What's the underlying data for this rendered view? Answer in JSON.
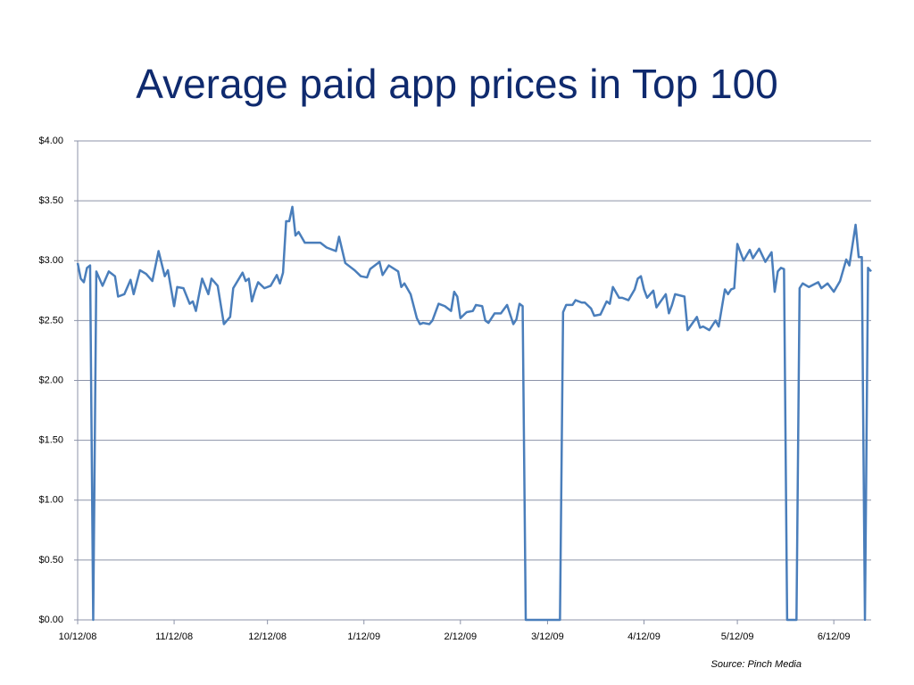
{
  "chart_data": {
    "type": "line",
    "title": "Average paid app prices in Top 100",
    "source": "Source: Pinch Media",
    "color": "#4a7ebb",
    "grid": true,
    "ylim": [
      0,
      4
    ],
    "yticks": [
      {
        "value": 0,
        "label": "$0.00"
      },
      {
        "value": 0.5,
        "label": "$0.50"
      },
      {
        "value": 1,
        "label": "$1.00"
      },
      {
        "value": 1.5,
        "label": "$1.50"
      },
      {
        "value": 2,
        "label": "$2.00"
      },
      {
        "value": 2.5,
        "label": "$2.50"
      },
      {
        "value": 3,
        "label": "$3.00"
      },
      {
        "value": 3.5,
        "label": "$3.50"
      },
      {
        "value": 4,
        "label": "$4.00"
      }
    ],
    "xlim": [
      "2008-10-12",
      "2009-06-24"
    ],
    "xticks": [
      {
        "value": "2008-10-12",
        "label": "10/12/08"
      },
      {
        "value": "2008-11-12",
        "label": "11/12/08"
      },
      {
        "value": "2008-12-12",
        "label": "12/12/08"
      },
      {
        "value": "2009-01-12",
        "label": "1/12/09"
      },
      {
        "value": "2009-02-12",
        "label": "2/12/09"
      },
      {
        "value": "2009-03-12",
        "label": "3/12/09"
      },
      {
        "value": "2009-04-12",
        "label": "4/12/09"
      },
      {
        "value": "2009-05-12",
        "label": "5/12/09"
      },
      {
        "value": "2009-06-12",
        "label": "6/12/09"
      }
    ],
    "x": [
      "2008-10-12",
      "2008-10-13",
      "2008-10-14",
      "2008-10-15",
      "2008-10-16",
      "2008-10-17",
      "2008-10-18",
      "2008-10-20",
      "2008-10-22",
      "2008-10-24",
      "2008-10-25",
      "2008-10-27",
      "2008-10-29",
      "2008-10-30",
      "2008-11-01",
      "2008-11-03",
      "2008-11-05",
      "2008-11-07",
      "2008-11-09",
      "2008-11-10",
      "2008-11-12",
      "2008-11-13",
      "2008-11-15",
      "2008-11-17",
      "2008-11-18",
      "2008-11-19",
      "2008-11-21",
      "2008-11-23",
      "2008-11-24",
      "2008-11-26",
      "2008-11-28",
      "2008-11-30",
      "2008-12-01",
      "2008-12-04",
      "2008-12-05",
      "2008-12-06",
      "2008-12-07",
      "2008-12-08",
      "2008-12-09",
      "2008-12-11",
      "2008-12-13",
      "2008-12-15",
      "2008-12-16",
      "2008-12-17",
      "2008-12-18",
      "2008-12-19",
      "2008-12-20",
      "2008-12-21",
      "2008-12-22",
      "2008-12-24",
      "2008-12-26",
      "2008-12-29",
      "2008-12-31",
      "2009-01-03",
      "2009-01-04",
      "2009-01-06",
      "2009-01-08",
      "2009-01-09",
      "2009-01-11",
      "2009-01-13",
      "2009-01-14",
      "2009-01-17",
      "2009-01-18",
      "2009-01-20",
      "2009-01-23",
      "2009-01-24",
      "2009-01-25",
      "2009-01-27",
      "2009-01-29",
      "2009-01-30",
      "2009-01-31",
      "2009-02-02",
      "2009-02-03",
      "2009-02-05",
      "2009-02-07",
      "2009-02-09",
      "2009-02-10",
      "2009-02-11",
      "2009-02-12",
      "2009-02-14",
      "2009-02-16",
      "2009-02-17",
      "2009-02-19",
      "2009-02-20",
      "2009-02-21",
      "2009-02-23",
      "2009-02-25",
      "2009-02-27",
      "2009-03-01",
      "2009-03-02",
      "2009-03-03",
      "2009-03-04",
      "2009-03-05",
      "2009-03-16",
      "2009-03-17",
      "2009-03-18",
      "2009-03-20",
      "2009-03-21",
      "2009-03-23",
      "2009-03-24",
      "2009-03-26",
      "2009-03-27",
      "2009-03-29",
      "2009-03-31",
      "2009-04-01",
      "2009-04-02",
      "2009-04-04",
      "2009-04-05",
      "2009-04-07",
      "2009-04-09",
      "2009-04-10",
      "2009-04-11",
      "2009-04-12",
      "2009-04-13",
      "2009-04-15",
      "2009-04-16",
      "2009-04-19",
      "2009-04-20",
      "2009-04-21",
      "2009-04-22",
      "2009-04-25",
      "2009-04-26",
      "2009-04-29",
      "2009-04-30",
      "2009-05-01",
      "2009-05-03",
      "2009-05-05",
      "2009-05-06",
      "2009-05-08",
      "2009-05-09",
      "2009-05-10",
      "2009-05-11",
      "2009-05-12",
      "2009-05-14",
      "2009-05-16",
      "2009-05-17",
      "2009-05-19",
      "2009-05-21",
      "2009-05-23",
      "2009-05-24",
      "2009-05-25",
      "2009-05-26",
      "2009-05-27",
      "2009-05-28",
      "2009-05-31",
      "2009-06-01",
      "2009-06-02",
      "2009-06-04",
      "2009-06-07",
      "2009-06-08",
      "2009-06-10",
      "2009-06-12",
      "2009-06-14",
      "2009-06-16",
      "2009-06-17",
      "2009-06-19",
      "2009-06-20",
      "2009-06-21",
      "2009-06-22",
      "2009-06-23",
      "2009-06-24"
    ],
    "values": [
      2.98,
      2.85,
      2.82,
      2.94,
      2.96,
      0,
      2.91,
      2.79,
      2.91,
      2.87,
      2.7,
      2.72,
      2.84,
      2.72,
      2.92,
      2.89,
      2.83,
      3.08,
      2.87,
      2.92,
      2.62,
      2.78,
      2.77,
      2.64,
      2.66,
      2.58,
      2.85,
      2.72,
      2.85,
      2.79,
      2.47,
      2.53,
      2.77,
      2.9,
      2.83,
      2.85,
      2.66,
      2.75,
      2.82,
      2.77,
      2.79,
      2.88,
      2.81,
      2.9,
      3.33,
      3.33,
      3.45,
      3.21,
      3.24,
      3.15,
      3.15,
      3.15,
      3.11,
      3.08,
      3.2,
      2.98,
      2.94,
      2.92,
      2.87,
      2.86,
      2.93,
      2.99,
      2.88,
      2.96,
      2.91,
      2.78,
      2.81,
      2.72,
      2.52,
      2.47,
      2.48,
      2.47,
      2.5,
      2.64,
      2.62,
      2.58,
      2.74,
      2.7,
      2.52,
      2.57,
      2.58,
      2.63,
      2.62,
      2.5,
      2.48,
      2.56,
      2.56,
      2.63,
      2.47,
      2.51,
      2.64,
      2.62,
      0,
      0,
      2.57,
      2.63,
      2.63,
      2.67,
      2.65,
      2.65,
      2.6,
      2.54,
      2.55,
      2.66,
      2.64,
      2.78,
      2.69,
      2.69,
      2.67,
      2.76,
      2.85,
      2.87,
      2.76,
      2.69,
      2.75,
      2.61,
      2.72,
      2.56,
      2.63,
      2.72,
      2.7,
      2.42,
      2.53,
      2.44,
      2.45,
      2.42,
      2.5,
      2.45,
      2.76,
      2.72,
      2.76,
      2.77,
      3.14,
      3.0,
      3.09,
      3.02,
      3.1,
      2.99,
      3.07,
      2.74,
      2.91,
      2.94,
      2.93,
      0,
      0,
      2.77,
      2.81,
      2.78,
      2.82,
      2.77,
      2.81,
      2.74,
      2.83,
      3.01,
      2.96,
      3.3,
      3.03,
      3.03,
      0,
      2.94,
      2.91
    ]
  }
}
